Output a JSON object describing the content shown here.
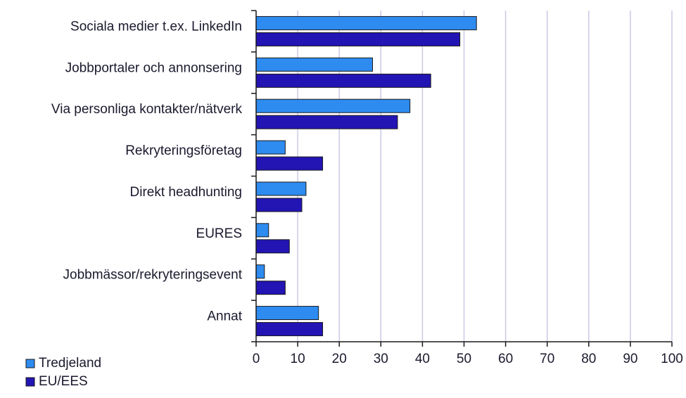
{
  "chart_data": {
    "type": "bar",
    "orientation": "horizontal",
    "categories": [
      "Sociala medier t.ex. LinkedIn",
      "Jobbportaler och annonsering",
      "Via personliga kontakter/nätverk",
      "Rekryteringsföretag",
      "Direkt headhunting",
      "EURES",
      "Jobbmässor/rekryteringsevent",
      "Annat"
    ],
    "series": [
      {
        "name": "Tredjeland",
        "color": "#2e8bf0",
        "values": [
          53,
          28,
          37,
          7,
          12,
          3,
          2,
          15
        ]
      },
      {
        "name": "EU/EES",
        "color": "#2314b4",
        "values": [
          49,
          42,
          34,
          16,
          11,
          8,
          7,
          16
        ]
      }
    ],
    "xlim": [
      0,
      100
    ],
    "xticks": [
      0,
      10,
      20,
      30,
      40,
      50,
      60,
      70,
      80,
      90,
      100
    ],
    "grid": "vertical",
    "grid_color": "#c9c9e6",
    "legend_position": "bottom-left",
    "title": "",
    "xlabel": "",
    "ylabel": ""
  }
}
